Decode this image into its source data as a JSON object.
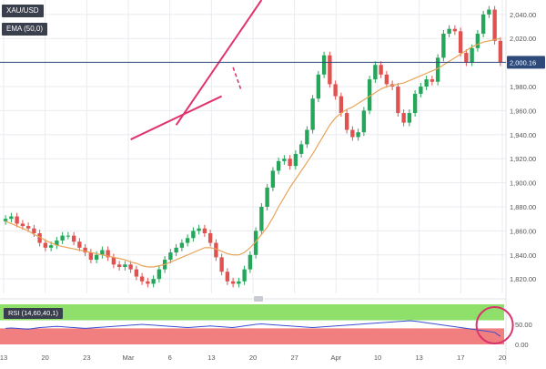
{
  "symbol": "XAU/USD",
  "ema_label": "EMA (50,0)",
  "rsi_label": "RSI (14,60,40,1)",
  "chart_data": [
    {
      "type": "candlestick",
      "ylim": [
        1808,
        2052
      ],
      "yticks": [
        "2,040.00",
        "2,020.00",
        "2,000.00",
        "1,980.00",
        "1,960.00",
        "1,940.00",
        "1,920.00",
        "1,900.00",
        "1,880.00",
        "1,860.00",
        "1,840.00",
        "1,820.00"
      ],
      "ytick_values": [
        2040,
        2020,
        2000,
        1980,
        1960,
        1940,
        1920,
        1900,
        1880,
        1860,
        1840,
        1820
      ],
      "last_price_label": "2,000.16",
      "last_price": 2000.16,
      "xticks": [
        "13",
        "20",
        "23",
        "Mar",
        "6",
        "13",
        "20",
        "27",
        "Apr",
        "10",
        "13",
        "17",
        "20"
      ],
      "grid": true,
      "ema_values": [
        1868,
        1866,
        1864,
        1862,
        1860,
        1857,
        1855,
        1852,
        1850,
        1848,
        1847,
        1846,
        1845,
        1844,
        1843,
        1842,
        1841,
        1840,
        1839,
        1838,
        1837,
        1836,
        1834,
        1833,
        1831,
        1830,
        1830,
        1831,
        1832,
        1834,
        1836,
        1838,
        1840,
        1842,
        1844,
        1846,
        1846,
        1845,
        1843,
        1841,
        1840,
        1840,
        1842,
        1846,
        1851,
        1857,
        1863,
        1871,
        1880,
        1888,
        1896,
        1903,
        1910,
        1917,
        1924,
        1932,
        1940,
        1948,
        1954,
        1958,
        1961,
        1963,
        1966,
        1969,
        1972,
        1975,
        1978,
        1980,
        1981,
        1982,
        1983,
        1985,
        1987,
        1989,
        1991,
        1993,
        1995,
        1998,
        2001,
        2004,
        2007,
        2010,
        2013,
        2015,
        2017,
        2018,
        2019,
        2020
      ],
      "series": [
        {
          "values": [
            1870,
            1872,
            1866,
            1864,
            1862,
            1858,
            1850,
            1846,
            1848,
            1852,
            1856,
            1856,
            1851,
            1846,
            1842,
            1836,
            1840,
            1844,
            1838,
            1832,
            1830,
            1832,
            1828,
            1822,
            1818,
            1816,
            1820,
            1828,
            1836,
            1842,
            1846,
            1850,
            1854,
            1860,
            1862,
            1858,
            1850,
            1838,
            1826,
            1818,
            1816,
            1818,
            1828,
            1840,
            1860,
            1880,
            1896,
            1910,
            1918,
            1920,
            1914,
            1924,
            1932,
            1944,
            1970,
            1990,
            2006,
            1982,
            1972,
            1958,
            1944,
            1938,
            1942,
            1960,
            1986,
            1998,
            1990,
            1982,
            1980,
            1958,
            1950,
            1958,
            1974,
            1980,
            1986,
            1984,
            2004,
            2024,
            2028,
            2026,
            2008,
            2000,
            2012,
            2024,
            2040,
            2044,
            2018,
            2000
          ]
        }
      ],
      "trendlines": [
        {
          "from": [
            22,
            1936
          ],
          "to": [
            38,
            1972
          ]
        },
        {
          "from": [
            30,
            1948
          ],
          "to": [
            45,
            2052
          ]
        }
      ],
      "projection": {
        "from": [
          40,
          1996
        ],
        "to": [
          41.5,
          1976
        ]
      }
    },
    {
      "type": "line",
      "label": "RSI (14,60,40,1)",
      "ylim": [
        0,
        100
      ],
      "upper": 60,
      "lower": 40,
      "yticks": [
        "50.00",
        "0.00"
      ],
      "ytick_values": [
        50,
        0
      ],
      "values": [
        40,
        41,
        40,
        39,
        38,
        40,
        42,
        43,
        44,
        45,
        44,
        43,
        42,
        41,
        40,
        41,
        42,
        43,
        44,
        45,
        46,
        47,
        48,
        49,
        50,
        49,
        48,
        47,
        46,
        45,
        44,
        43,
        42,
        43,
        44,
        45,
        46,
        45,
        44,
        43,
        42,
        44,
        46,
        48,
        50,
        51,
        50,
        49,
        48,
        47,
        46,
        45,
        44,
        43,
        42,
        43,
        44,
        45,
        46,
        47,
        48,
        49,
        50,
        51,
        52,
        53,
        54,
        55,
        56,
        57,
        58,
        59,
        58,
        56,
        54,
        52,
        50,
        48,
        46,
        44,
        42,
        40,
        38,
        36,
        34,
        32,
        30,
        20
      ]
    }
  ]
}
